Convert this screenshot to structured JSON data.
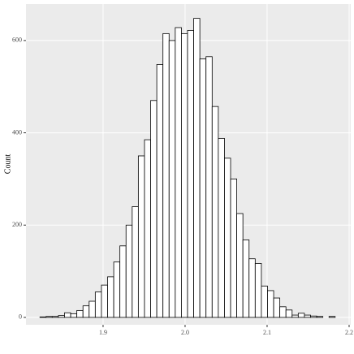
{
  "chart_data": {
    "type": "histogram",
    "y_label": "Count",
    "bins": [
      1.823,
      1.8305,
      1.838,
      1.8455,
      1.853,
      1.8605,
      1.868,
      1.8755,
      1.883,
      1.8905,
      1.898,
      1.9055,
      1.913,
      1.9205,
      1.928,
      1.9355,
      1.943,
      1.9505,
      1.958,
      1.9655,
      1.973,
      1.9805,
      1.988,
      1.9955,
      2.003,
      2.0105,
      2.018,
      2.0255,
      2.033,
      2.0405,
      2.048,
      2.0555,
      2.063,
      2.0705,
      2.078,
      2.0855,
      2.093,
      2.1005,
      2.108,
      2.1155,
      2.123,
      2.1305,
      2.138,
      2.1455,
      2.153,
      2.1605,
      2.168,
      2.1755,
      2.183
    ],
    "values": [
      1,
      2,
      2,
      4,
      10,
      8,
      15,
      25,
      35,
      55,
      70,
      88,
      120,
      155,
      200,
      240,
      350,
      385,
      470,
      548,
      615,
      600,
      628,
      615,
      622,
      648,
      560,
      565,
      457,
      388,
      345,
      300,
      225,
      168,
      127,
      117,
      68,
      58,
      42,
      23,
      16,
      5,
      9,
      5,
      3,
      2,
      0,
      2
    ],
    "color": "#ffffff",
    "edge_color": "#000000",
    "xlim": [
      1.806,
      2.202
    ],
    "ylim": [
      -16,
      679
    ],
    "xticks": [
      1.9,
      {
        "value": 2.0,
        "label": "2.0"
      },
      2.1,
      2.2
    ],
    "yticks": [
      0,
      200,
      400,
      600
    ],
    "grid": true
  }
}
